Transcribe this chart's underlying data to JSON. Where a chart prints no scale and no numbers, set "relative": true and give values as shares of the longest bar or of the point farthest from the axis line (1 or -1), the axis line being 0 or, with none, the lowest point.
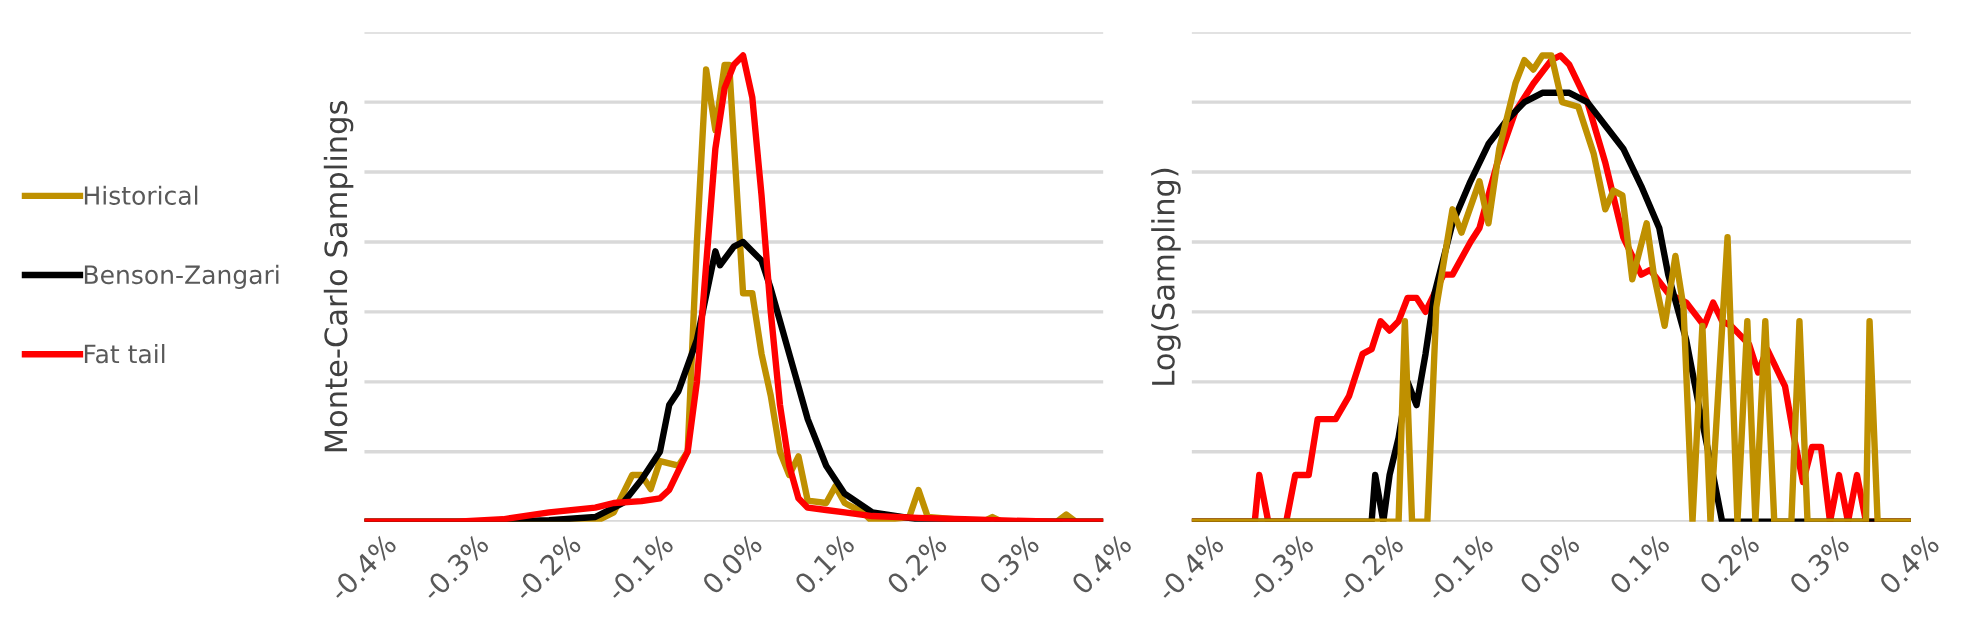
{
  "chart_data": [
    {
      "type": "line",
      "relative": true,
      "ylabel": "Monte-Carlo Samplings",
      "legend": "left",
      "grid": "y",
      "marker": "none",
      "line_style": "solid",
      "xlim": [
        -0.4,
        0.4
      ],
      "xticks": [
        {
          "value": -0.4,
          "label": "-0.4%"
        },
        {
          "value": -0.3,
          "label": "-0.3%"
        },
        {
          "value": -0.2,
          "label": "-0.2%"
        },
        {
          "value": -0.1,
          "label": "-0.1%"
        },
        {
          "value": 0,
          "label": "0.0%"
        },
        {
          "value": 0.1,
          "label": "0.1%"
        },
        {
          "value": 0.2,
          "label": "0.2%"
        },
        {
          "value": 0.3,
          "label": "0.3%"
        },
        {
          "value": 0.4,
          "label": "0.4%"
        }
      ],
      "series": [
        {
          "name": "Historical",
          "color": "#bf9000",
          "x": [
            -0.4,
            -0.15,
            -0.13,
            -0.11,
            -0.1,
            -0.09,
            -0.08,
            -0.06,
            -0.05,
            -0.04,
            -0.03,
            -0.02,
            -0.01,
            -0.005,
            0.01,
            0.02,
            0.03,
            0.04,
            0.05,
            0.06,
            0.07,
            0.08,
            0.1,
            0.11,
            0.12,
            0.14,
            0.15,
            0.19,
            0.2,
            0.21,
            0.27,
            0.28,
            0.29,
            0.35,
            0.36,
            0.37,
            0.4
          ],
          "values": [
            0,
            0,
            0.02,
            0.1,
            0.1,
            0.07,
            0.13,
            0.12,
            0.15,
            0.6,
            0.97,
            0.84,
            0.98,
            0.98,
            0.49,
            0.49,
            0.36,
            0.27,
            0.15,
            0.1,
            0.14,
            0.045,
            0.04,
            0.076,
            0.04,
            0.02,
            0,
            0.01,
            0.068,
            0.01,
            0,
            0.01,
            0,
            0,
            0.015,
            0,
            0
          ]
        },
        {
          "name": "Benson-Zangari",
          "color": "#000000",
          "x": [
            -0.4,
            -0.25,
            -0.2,
            -0.15,
            -0.12,
            -0.1,
            -0.08,
            -0.07,
            -0.06,
            -0.04,
            -0.02,
            -0.015,
            0,
            0.01,
            0.03,
            0.04,
            0.05,
            0.06,
            0.07,
            0.08,
            0.1,
            0.12,
            0.15,
            0.2,
            0.25,
            0.4
          ],
          "values": [
            0,
            0,
            0.003,
            0.01,
            0.04,
            0.09,
            0.15,
            0.25,
            0.28,
            0.39,
            0.58,
            0.55,
            0.59,
            0.6,
            0.56,
            0.5,
            0.43,
            0.36,
            0.29,
            0.22,
            0.12,
            0.06,
            0.02,
            0.005,
            0,
            0
          ]
        },
        {
          "name": "Fat tail",
          "color": "#ff0000",
          "x": [
            -0.4,
            -0.3,
            -0.25,
            -0.2,
            -0.15,
            -0.13,
            -0.1,
            -0.08,
            -0.07,
            -0.05,
            -0.04,
            -0.03,
            -0.02,
            -0.01,
            0,
            0.01,
            0.02,
            0.03,
            0.04,
            0.05,
            0.06,
            0.07,
            0.08,
            0.1,
            0.12,
            0.15,
            0.2,
            0.25,
            0.3,
            0.35,
            0.4
          ],
          "values": [
            0,
            0,
            0.005,
            0.02,
            0.03,
            0.04,
            0.044,
            0.05,
            0.068,
            0.15,
            0.3,
            0.55,
            0.8,
            0.93,
            0.98,
            1.0,
            0.91,
            0.7,
            0.45,
            0.25,
            0.12,
            0.05,
            0.03,
            0.025,
            0.02,
            0.012,
            0.008,
            0.005,
            0.002,
            0,
            0
          ]
        }
      ]
    },
    {
      "type": "line",
      "relative": true,
      "ylabel": "Log(Sampling)",
      "grid": "y",
      "marker": "none",
      "line_style": "solid",
      "xlim": [
        -0.4,
        0.4
      ],
      "xticks": [
        {
          "value": -0.4,
          "label": "-0.4%"
        },
        {
          "value": -0.3,
          "label": "-0.3%"
        },
        {
          "value": -0.2,
          "label": "-0.2%"
        },
        {
          "value": -0.1,
          "label": "-0.1%"
        },
        {
          "value": 0,
          "label": "0.0%"
        },
        {
          "value": 0.1,
          "label": "0.1%"
        },
        {
          "value": 0.2,
          "label": "0.2%"
        },
        {
          "value": 0.3,
          "label": "0.3%"
        },
        {
          "value": 0.4,
          "label": "0.4%"
        }
      ],
      "series": [
        {
          "color": "#ff0000",
          "x": [
            -0.4,
            -0.33,
            -0.325,
            -0.315,
            -0.295,
            -0.285,
            -0.27,
            -0.26,
            -0.24,
            -0.225,
            -0.21,
            -0.2,
            -0.19,
            -0.18,
            -0.17,
            -0.16,
            -0.15,
            -0.14,
            -0.12,
            -0.11,
            -0.09,
            -0.08,
            -0.06,
            -0.04,
            -0.02,
            0,
            0.01,
            0.02,
            0.04,
            0.06,
            0.08,
            0.1,
            0.11,
            0.13,
            0.15,
            0.17,
            0.18,
            0.19,
            0.2,
            0.22,
            0.23,
            0.24,
            0.26,
            0.27,
            0.28,
            0.29,
            0.3,
            0.31,
            0.32,
            0.33,
            0.34,
            0.35,
            0.37,
            0.4
          ],
          "values": [
            0,
            0,
            0.1,
            0,
            0,
            0.1,
            0.1,
            0.22,
            0.22,
            0.27,
            0.36,
            0.37,
            0.43,
            0.41,
            0.43,
            0.48,
            0.48,
            0.45,
            0.53,
            0.53,
            0.6,
            0.63,
            0.77,
            0.88,
            0.94,
            0.99,
            1.0,
            0.98,
            0.9,
            0.77,
            0.61,
            0.53,
            0.54,
            0.49,
            0.47,
            0.42,
            0.47,
            0.43,
            0.42,
            0.38,
            0.32,
            0.37,
            0.29,
            0.18,
            0.085,
            0.16,
            0.16,
            0,
            0.1,
            0,
            0.1,
            0,
            0,
            0
          ]
        },
        {
          "color": "#000000",
          "x": [
            -0.4,
            -0.2,
            -0.196,
            -0.187,
            -0.18,
            -0.17,
            -0.16,
            -0.15,
            -0.14,
            -0.13,
            -0.11,
            -0.09,
            -0.07,
            -0.05,
            -0.03,
            -0.01,
            0.02,
            0.04,
            0.06,
            0.08,
            0.1,
            0.12,
            0.13,
            0.15,
            0.165,
            0.18,
            0.19,
            0.4
          ],
          "values": [
            0,
            0,
            0.1,
            0,
            0.1,
            0.18,
            0.3,
            0.25,
            0.36,
            0.49,
            0.64,
            0.73,
            0.81,
            0.86,
            0.9,
            0.92,
            0.92,
            0.9,
            0.85,
            0.8,
            0.72,
            0.63,
            0.53,
            0.39,
            0.24,
            0.1,
            0,
            0
          ]
        },
        {
          "color": "#bf9000",
          "x": [
            -0.4,
            -0.17,
            -0.163,
            -0.155,
            -0.138,
            -0.128,
            -0.11,
            -0.1,
            -0.08,
            -0.07,
            -0.058,
            -0.04,
            -0.03,
            -0.02,
            -0.01,
            0,
            0.012,
            0.03,
            0.047,
            0.06,
            0.069,
            0.079,
            0.09,
            0.106,
            0.114,
            0.126,
            0.138,
            0.147,
            0.157,
            0.168,
            0.177,
            0.196,
            0.207,
            0.218,
            0.227,
            0.238,
            0.248,
            0.267,
            0.276,
            0.285,
            0.35,
            0.354,
            0.363,
            0.4
          ],
          "values": [
            0,
            0,
            0.43,
            0,
            0,
            0.46,
            0.67,
            0.62,
            0.73,
            0.64,
            0.8,
            0.94,
            0.99,
            0.97,
            1.0,
            1.0,
            0.9,
            0.89,
            0.79,
            0.67,
            0.71,
            0.7,
            0.52,
            0.64,
            0.53,
            0.42,
            0.57,
            0.46,
            0,
            0.42,
            0,
            0.61,
            0,
            0.43,
            0,
            0.43,
            0,
            0,
            0.43,
            0,
            0,
            0.43,
            0,
            0
          ]
        }
      ]
    }
  ]
}
